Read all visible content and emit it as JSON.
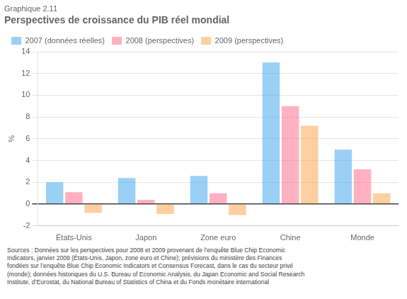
{
  "chart_data": {
    "type": "bar",
    "subtitle": "Graphique 2.11",
    "title": "Perspectives de croissance du PIB réel mondial",
    "ylabel": "%",
    "categories": [
      "États-Unis",
      "Japon",
      "Zone euro",
      "Chine",
      "Monde"
    ],
    "series": [
      {
        "name": "2007\n(données réelles)",
        "values": [
          2.0,
          2.4,
          2.6,
          13.0,
          5.0
        ]
      },
      {
        "name": "2008\n(perspectives)",
        "values": [
          1.1,
          0.4,
          1.0,
          9.0,
          3.2
        ]
      },
      {
        "name": "2009\n(perspectives)",
        "values": [
          -0.8,
          -0.9,
          -1.0,
          7.2,
          1.0
        ]
      }
    ],
    "ylim": [
      -2,
      14
    ],
    "yticks": [
      -2,
      0,
      2,
      4,
      6,
      8,
      10,
      12,
      14
    ],
    "grid": true,
    "legend": "top-left",
    "annotations": [
      "Sources : Données sur les perspectives pour 2008 et 2009 provenant de l’enquête Blue Chip Economic\nIndicators, janvier 2009 (États-Unis, Japon, zone euro et Chine); prévisions du ministère des Finances\nfondées sur l’enquête Blue Chip Economic Indicators et Consensus Forecast, dans le cas du secteur privé\n(monde); données historiques du U.S. Bureau of Economic Analysis, du Japan Economic and Social Research\nInstitute, d’Eurostat, du National Bureau of Statistics of China et du Fonds monétaire international"
    ]
  }
}
